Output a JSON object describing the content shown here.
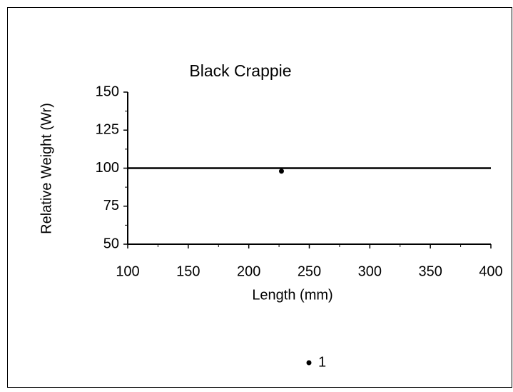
{
  "chart_data": {
    "type": "scatter",
    "title": "Black Crappie",
    "xlabel": "Length (mm)",
    "ylabel": "Relative Weight (Wr)",
    "series": [
      {
        "name": "1",
        "color": "#000000",
        "x": [
          227
        ],
        "values": [
          98
        ]
      }
    ],
    "reference_lines": [
      {
        "x": [
          100,
          400
        ],
        "values": [
          100,
          100
        ],
        "color": "#000000"
      }
    ],
    "xlim": [
      100,
      400
    ],
    "xticks": [
      100,
      150,
      200,
      250,
      300,
      350,
      400
    ],
    "xminorticks": [
      125,
      175,
      225,
      275,
      325,
      375
    ],
    "ylim": [
      50,
      150
    ],
    "yticks": [
      50,
      75,
      100,
      125,
      150
    ],
    "yminorticks": [
      62.5,
      87.5,
      112.5,
      137.5
    ],
    "grid": false,
    "legend": "bottom"
  }
}
